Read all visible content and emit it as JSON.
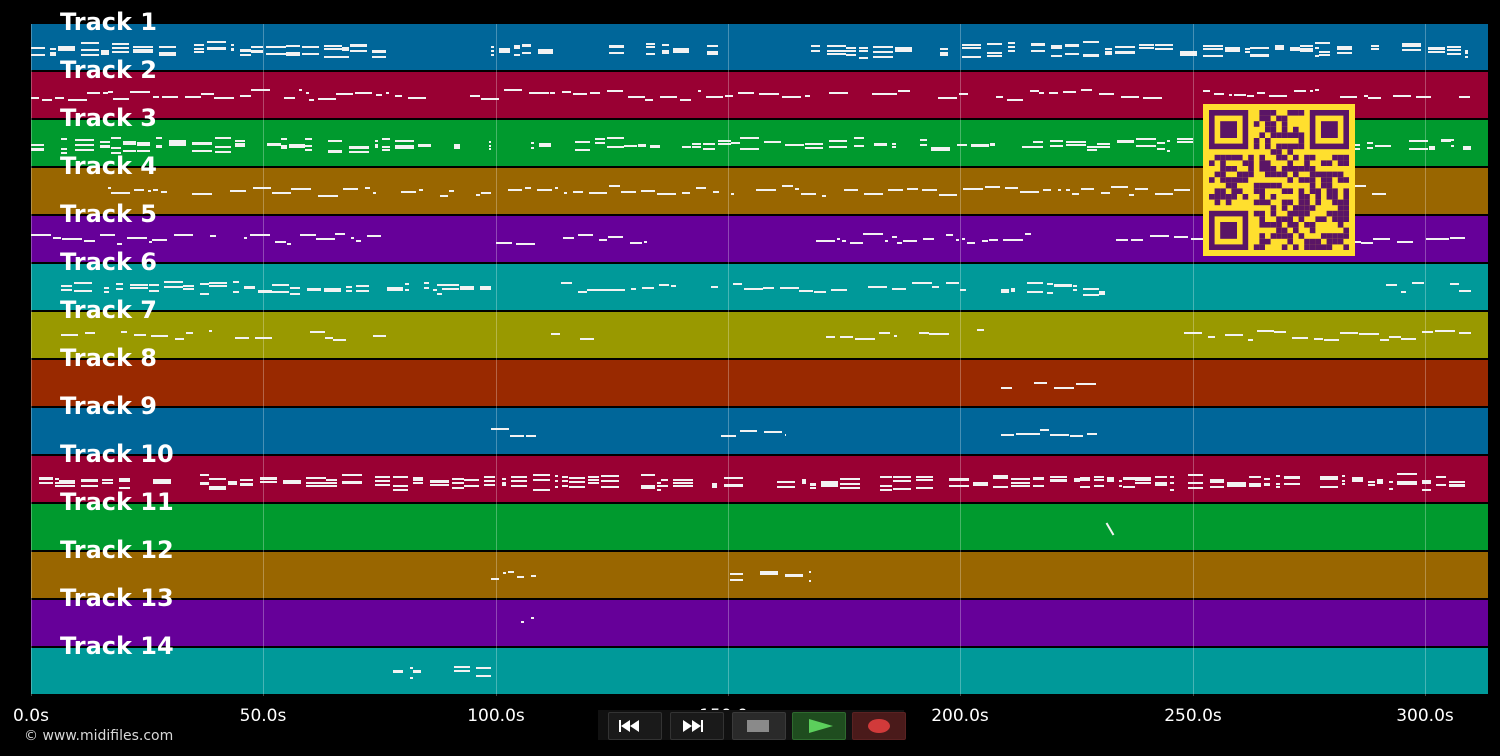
{
  "tracks": [
    {
      "label": "Track 1",
      "color": "#006699"
    },
    {
      "label": "Track 2",
      "color": "#990033"
    },
    {
      "label": "Track 3",
      "color": "#009a2e"
    },
    {
      "label": "Track 4",
      "color": "#996600"
    },
    {
      "label": "Track 5",
      "color": "#660099"
    },
    {
      "label": "Track 6",
      "color": "#009999"
    },
    {
      "label": "Track 7",
      "color": "#999900"
    },
    {
      "label": "Track 8",
      "color": "#992900"
    },
    {
      "label": "Track 9",
      "color": "#006699"
    },
    {
      "label": "Track 10",
      "color": "#990033"
    },
    {
      "label": "Track 11",
      "color": "#009a2e"
    },
    {
      "label": "Track 12",
      "color": "#996600"
    },
    {
      "label": "Track 13",
      "color": "#660099"
    },
    {
      "label": "Track 14",
      "color": "#009999"
    }
  ],
  "timeline": {
    "ticks": [
      "0.0s",
      "50.0s",
      "100.0s",
      "150.0s",
      "200.0s",
      "250.0s",
      "300.0s"
    ]
  },
  "copyright": "© www.midifiles.com",
  "transport": {
    "rewind_icon": "rewind-icon",
    "forward_icon": "fast-forward-icon",
    "stop_icon": "stop-icon",
    "play_icon": "play-icon",
    "record_icon": "record-icon",
    "play_color": "#2a7a2a",
    "record_color": "#d13a3a"
  },
  "qr_code": {
    "foreground": "#5a1566",
    "background": "#ffdf2e"
  }
}
